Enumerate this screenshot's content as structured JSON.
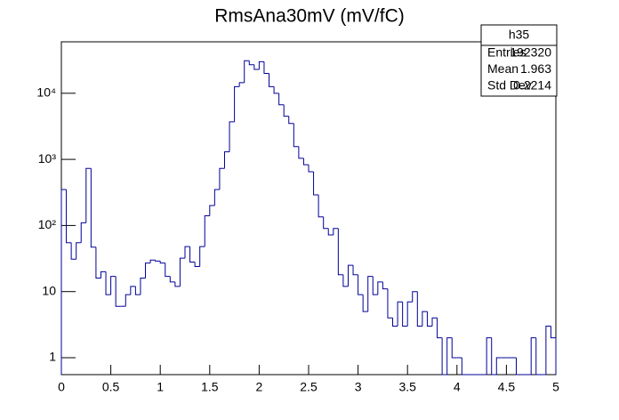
{
  "chart_data": {
    "type": "histogram",
    "title": "RmsAna30mV (mV/fC)",
    "bins": [
      0,
      0.05,
      0.1,
      0.15,
      0.2,
      0.25,
      0.3,
      0.35,
      0.4,
      0.45,
      0.5,
      0.55,
      0.6,
      0.65,
      0.7,
      0.75,
      0.8,
      0.85,
      0.9,
      0.95,
      1,
      1.05,
      1.1,
      1.15,
      1.2,
      1.25,
      1.3,
      1.35,
      1.4,
      1.45,
      1.5,
      1.55,
      1.6,
      1.65,
      1.7,
      1.75,
      1.8,
      1.85,
      1.9,
      1.95,
      2,
      2.05,
      2.1,
      2.15,
      2.2,
      2.25,
      2.3,
      2.35,
      2.4,
      2.45,
      2.5,
      2.55,
      2.6,
      2.65,
      2.7,
      2.75,
      2.8,
      2.85,
      2.9,
      2.95,
      3,
      3.05,
      3.1,
      3.15,
      3.2,
      3.25,
      3.3,
      3.35,
      3.4,
      3.45,
      3.5,
      3.55,
      3.6,
      3.65,
      3.7,
      3.75,
      3.8,
      3.85,
      3.9,
      3.95,
      4,
      4.05,
      4.1,
      4.15,
      4.2,
      4.25,
      4.3,
      4.35,
      4.4,
      4.45,
      4.5,
      4.55,
      4.6,
      4.65,
      4.7,
      4.75,
      4.8,
      4.85,
      4.9,
      4.95,
      5
    ],
    "values": [
      350,
      55,
      31,
      55,
      110,
      730,
      47,
      16,
      20,
      9,
      17,
      6,
      6,
      9,
      12,
      9,
      16,
      27,
      30,
      29,
      27,
      17,
      14,
      12,
      32,
      48,
      28,
      24,
      48,
      140,
      200,
      350,
      730,
      1300,
      3700,
      12600,
      14500,
      31000,
      27000,
      23000,
      30000,
      20000,
      12600,
      10000,
      6700,
      4500,
      3500,
      1560,
      1040,
      830,
      650,
      290,
      135,
      90,
      72,
      90,
      18,
      12,
      25,
      18,
      9,
      5,
      17,
      9,
      14,
      11,
      4,
      3,
      7,
      3,
      7,
      10,
      3,
      5,
      3,
      4,
      2,
      0,
      2,
      1,
      1,
      0,
      0,
      0,
      0,
      0,
      2,
      0,
      1,
      1,
      1,
      1,
      0,
      0,
      0,
      2,
      0,
      0,
      3,
      2
    ],
    "color": "#000099",
    "log_y": true,
    "xlim": [
      0,
      5
    ],
    "xticks": [
      0,
      {
        "value": 0.5,
        "label": "0.5"
      },
      1,
      1.5,
      2,
      2.5,
      3,
      3.5,
      4,
      4.5,
      5
    ],
    "ylim": [
      0.555,
      60000
    ],
    "yticks": [
      1,
      10,
      {
        "value": 100,
        "label": "10²"
      },
      {
        "value": 1000,
        "label": "10³"
      },
      {
        "value": 10000,
        "label": "10⁴"
      }
    ],
    "stats": {
      "title": "h35",
      "rows": [
        [
          "Entries",
          "192320"
        ],
        [
          "Mean",
          "1.963"
        ],
        [
          "Std Dev",
          "0.2214"
        ]
      ]
    }
  }
}
